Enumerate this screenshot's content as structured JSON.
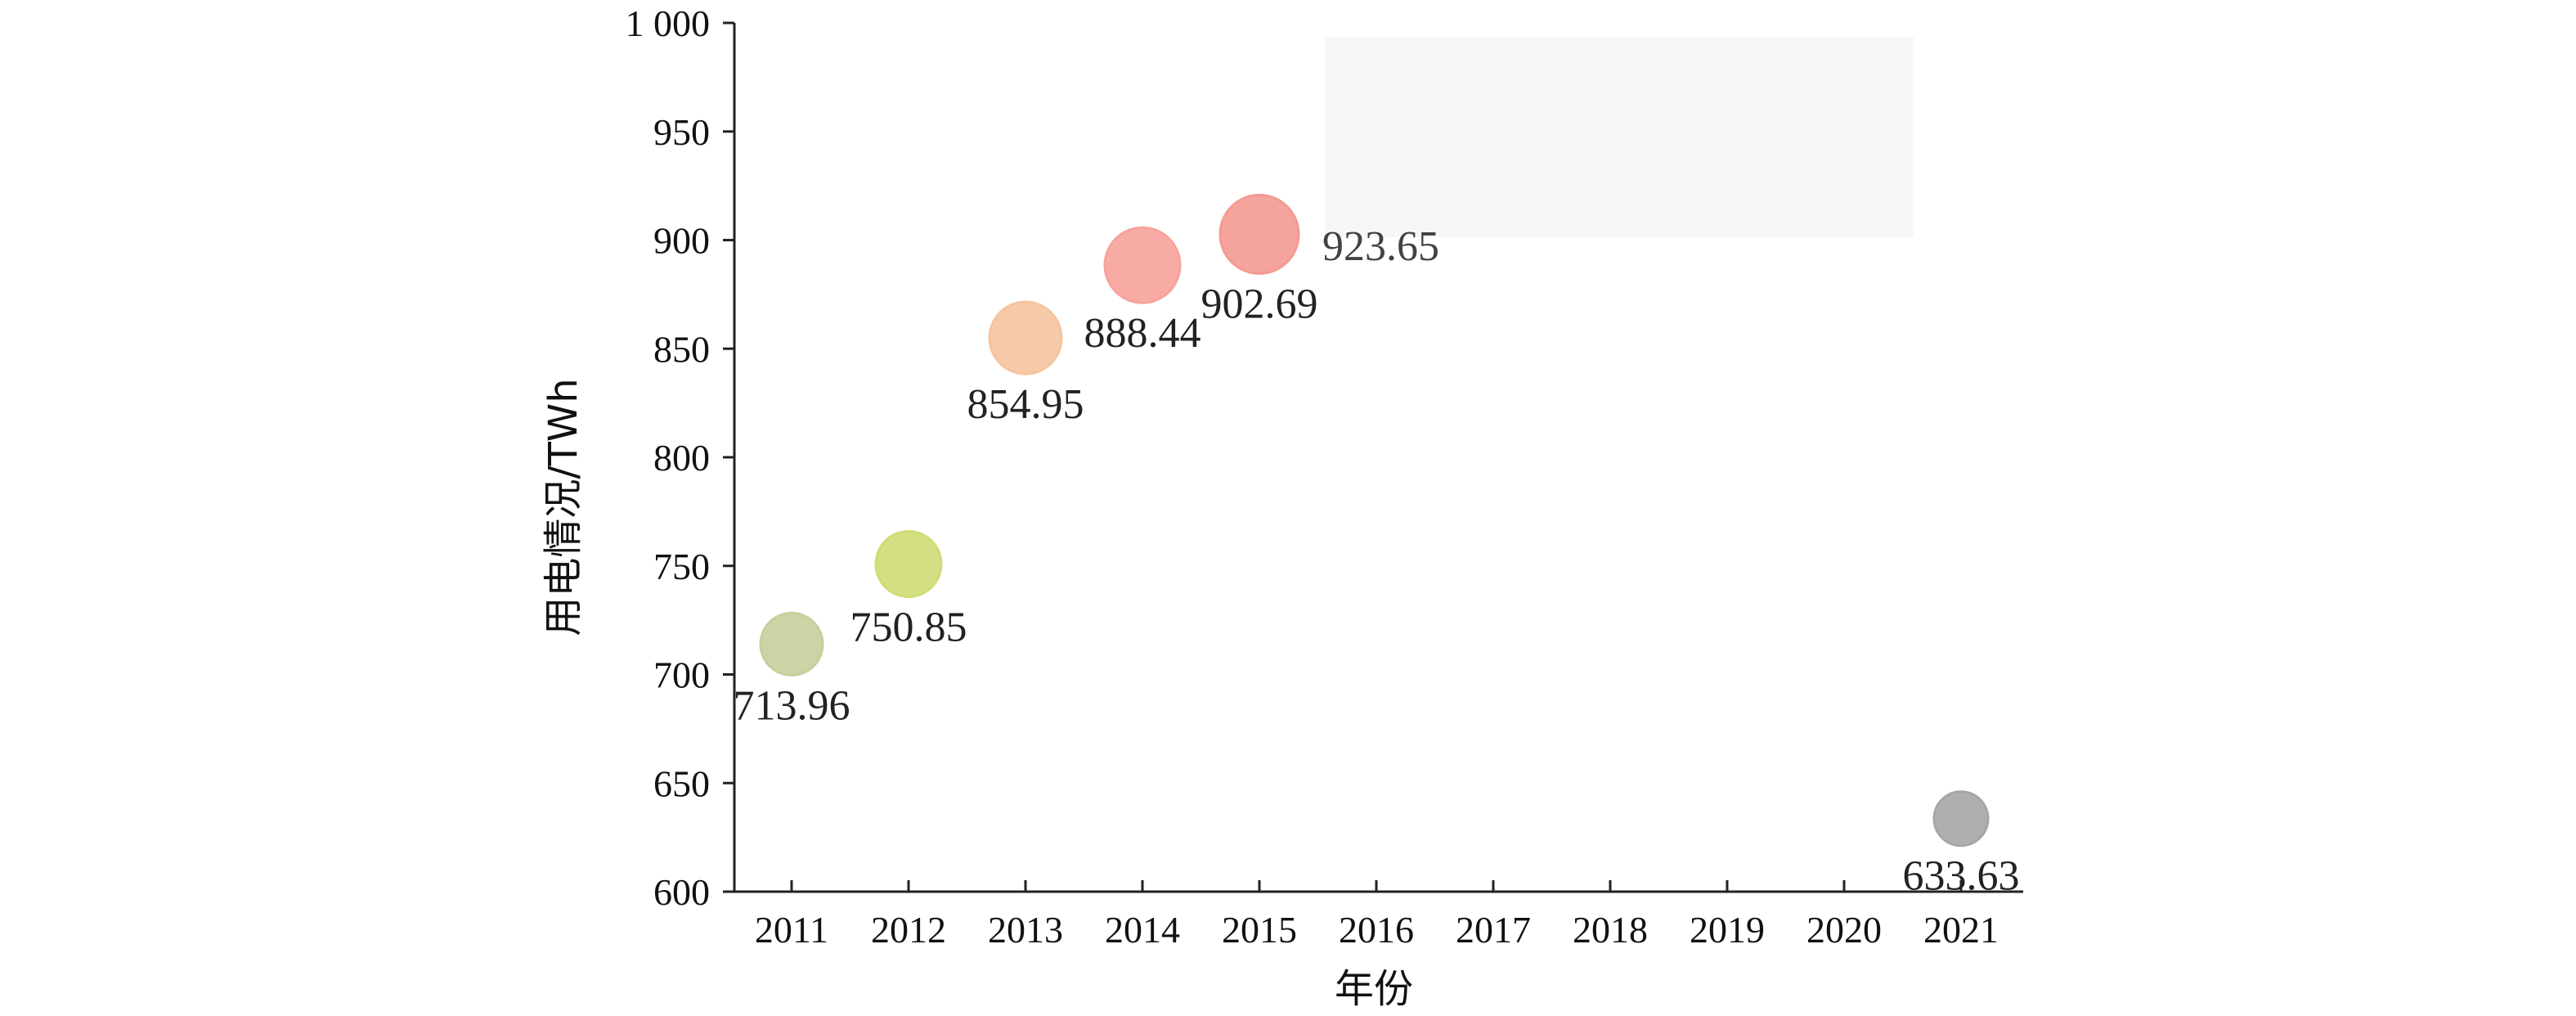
{
  "chart_data": {
    "type": "scatter",
    "title": "",
    "xlabel": "年份",
    "ylabel": "用电情况/TWh",
    "x_ticks": [
      "2011",
      "2012",
      "2013",
      "2014",
      "2015",
      "2016",
      "2017",
      "2018",
      "2019",
      "2020",
      "2021"
    ],
    "y_ticks": [
      "600",
      "650",
      "700",
      "750",
      "800",
      "850",
      "900",
      "950",
      "1 000"
    ],
    "ylim": [
      600,
      1000
    ],
    "grid": false,
    "legend": "none",
    "points": [
      {
        "x": "2011",
        "y": 713.96,
        "label": "713.96",
        "color": "#c6cf9b"
      },
      {
        "x": "2012",
        "y": 750.85,
        "label": "750.85",
        "color": "#cfdc76"
      },
      {
        "x": "2013",
        "y": 854.95,
        "label": "854.95",
        "color": "#f5c49e"
      },
      {
        "x": "2014",
        "y": 888.44,
        "label": "888.44",
        "color": "#f7a29b"
      },
      {
        "x": "2015",
        "y": 902.69,
        "label": "902.69",
        "color": "#f49a92"
      },
      {
        "x": "2021",
        "y": 633.63,
        "label": "633.63",
        "color": "#a6a6a6"
      }
    ],
    "annotations": [
      {
        "text": "923.65",
        "note": "partially obscured label near 2015-2016"
      }
    ]
  }
}
